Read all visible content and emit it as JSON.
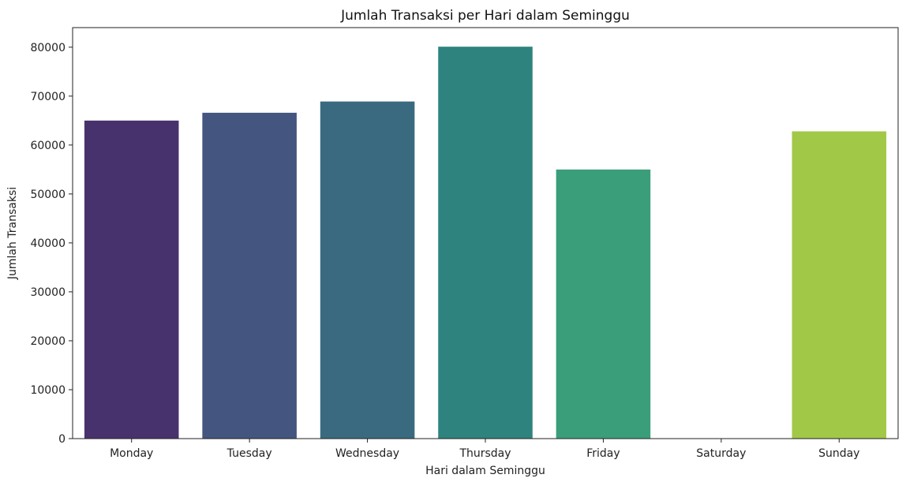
{
  "chart_data": {
    "type": "bar",
    "title": "Jumlah Transaksi per Hari dalam Seminggu",
    "xlabel": "Hari dalam Seminggu",
    "ylabel": "Jumlah Transaksi",
    "categories": [
      "Monday",
      "Tuesday",
      "Wednesday",
      "Thursday",
      "Friday",
      "Saturday",
      "Sunday"
    ],
    "values": [
      65000,
      66600,
      68900,
      80100,
      55000,
      0,
      62800
    ],
    "colors": [
      "#48326e",
      "#44567f",
      "#3a6a80",
      "#2e837e",
      "#3a9e7a",
      "#5cba5f",
      "#a2c848"
    ],
    "ylim": [
      0,
      84000
    ],
    "yticks": [
      0,
      10000,
      20000,
      30000,
      40000,
      50000,
      60000,
      70000,
      80000
    ],
    "ytick_labels": [
      "0",
      "10000",
      "20000",
      "30000",
      "40000",
      "50000",
      "60000",
      "70000",
      "80000"
    ],
    "grid": false,
    "legend": "none"
  }
}
